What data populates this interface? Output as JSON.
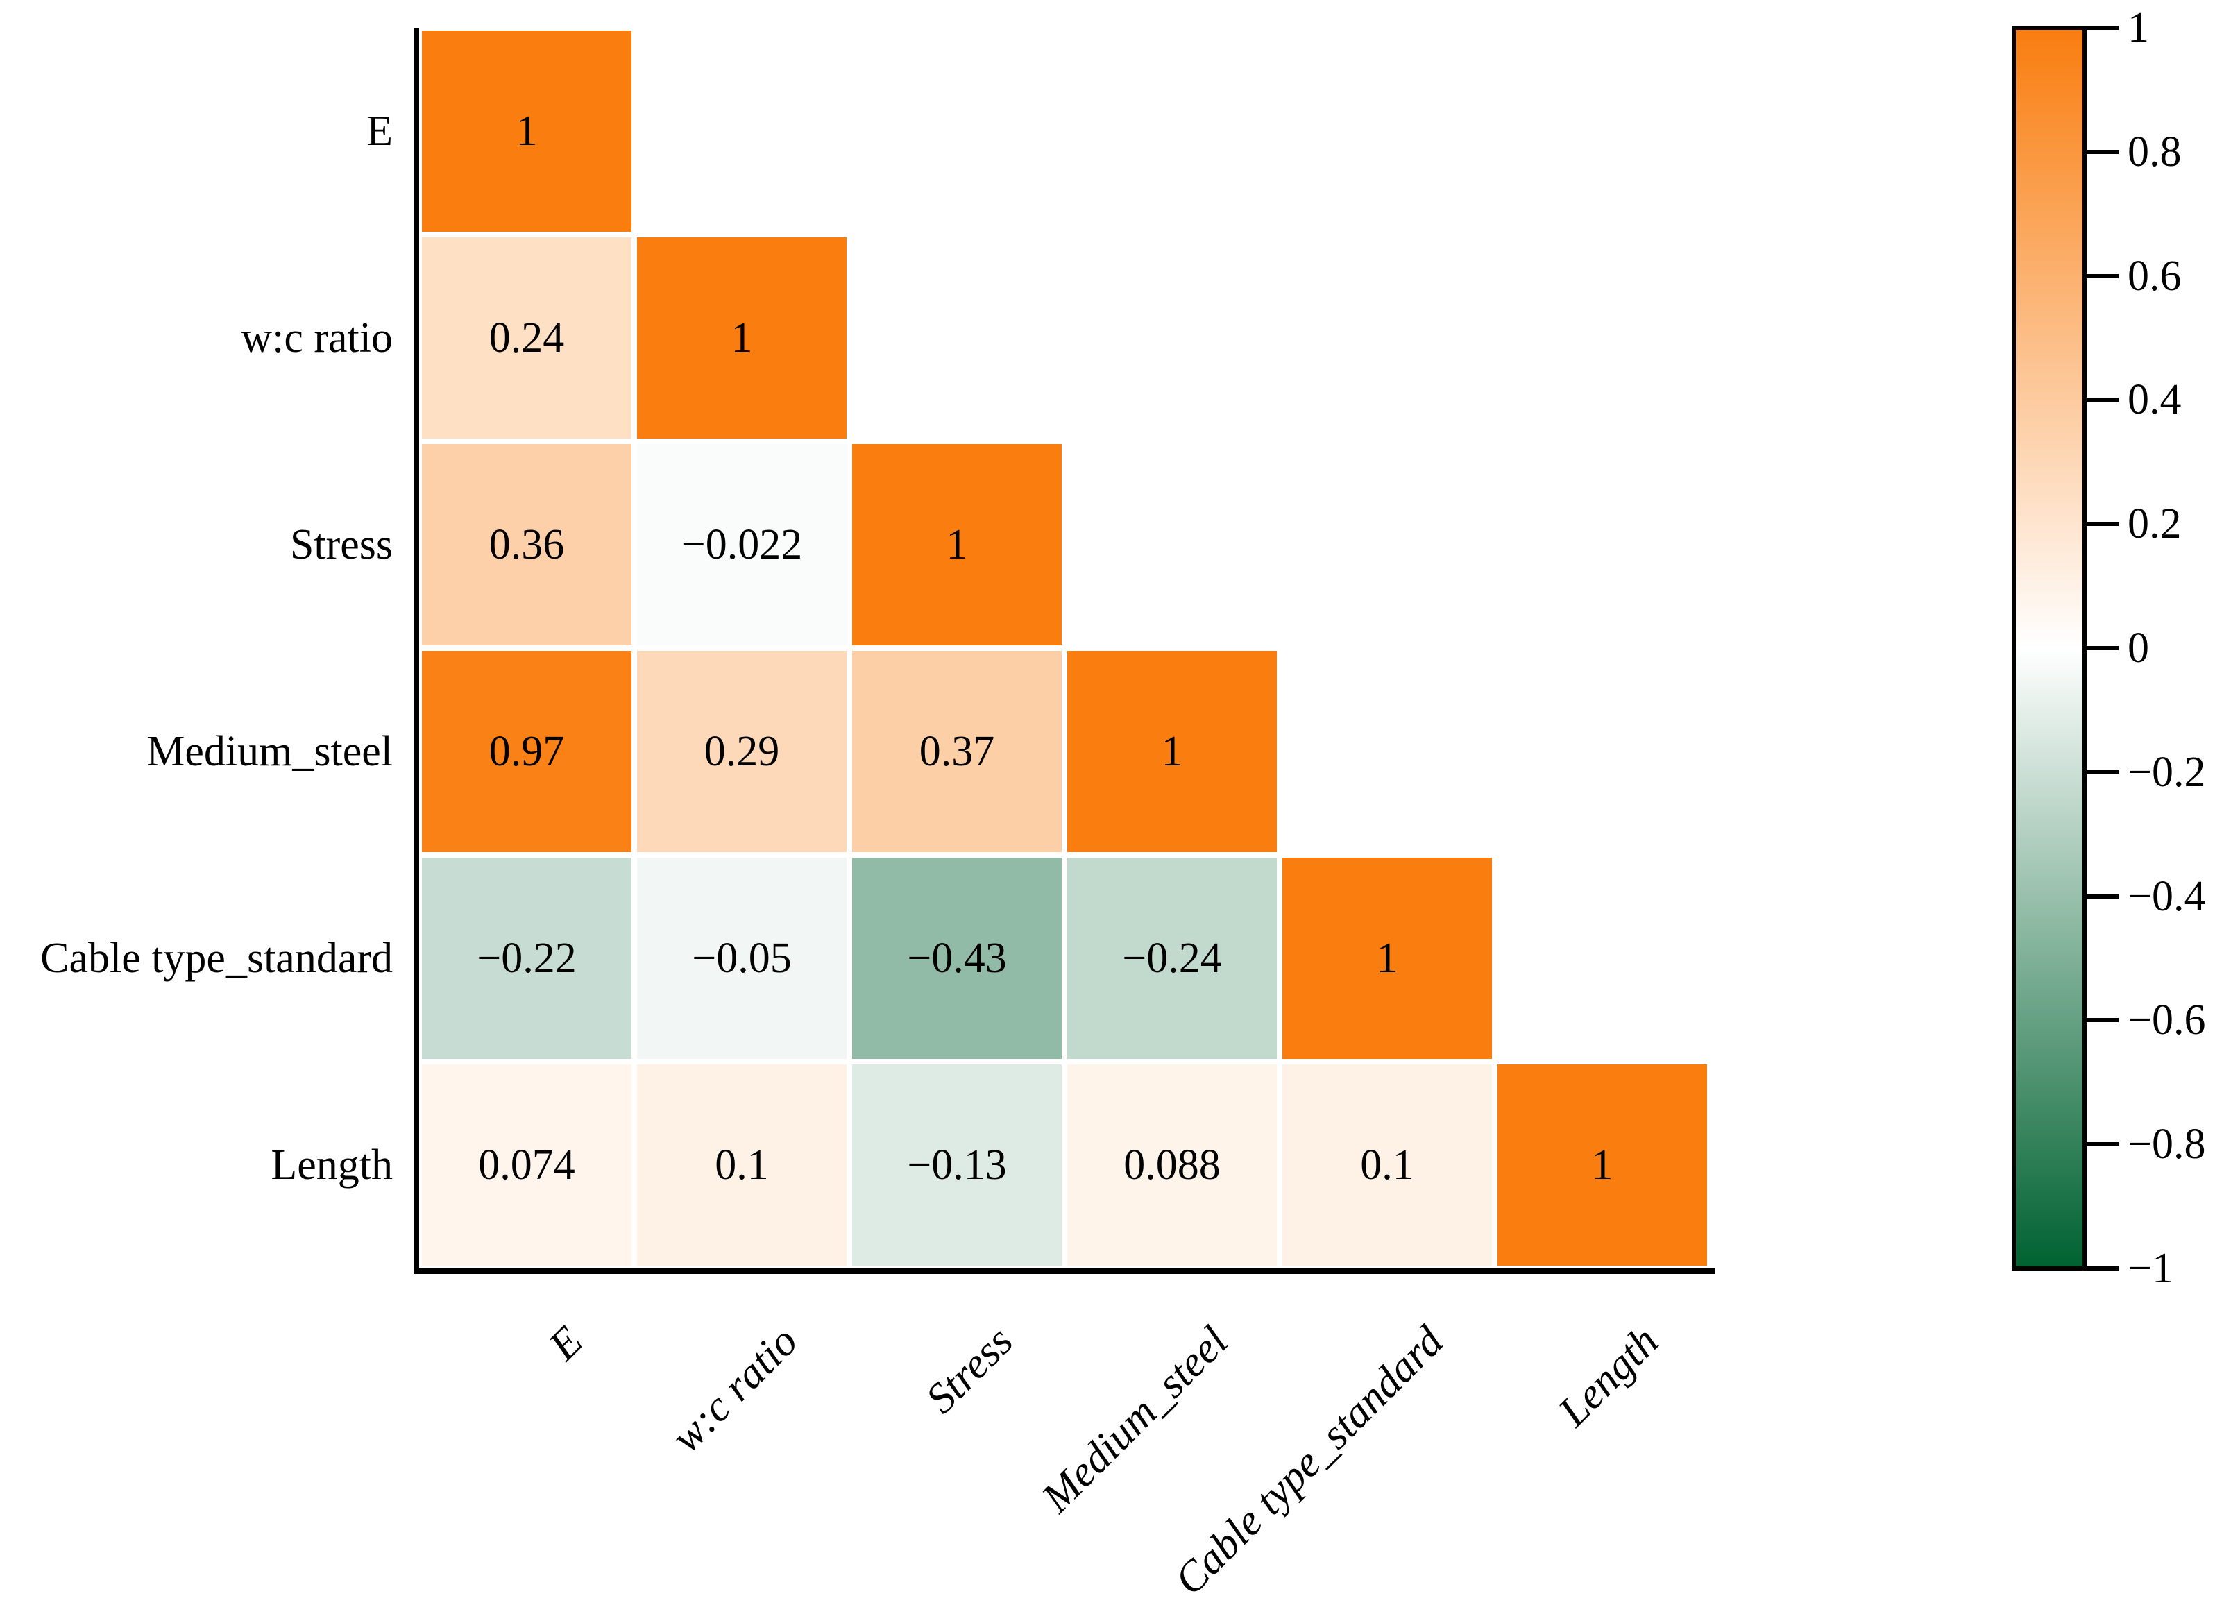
{
  "chart_data": {
    "type": "heatmap",
    "subtype": "correlation-matrix-lower-triangle",
    "title": "",
    "variables": [
      "E",
      "w:c ratio",
      "Stress",
      "Medium_steel",
      "Cable type_standard",
      "Length"
    ],
    "values": [
      [
        1
      ],
      [
        0.24,
        1
      ],
      [
        0.36,
        -0.022,
        1
      ],
      [
        0.97,
        0.29,
        0.37,
        1
      ],
      [
        -0.22,
        -0.05,
        -0.43,
        -0.24,
        1
      ],
      [
        0.074,
        0.1,
        -0.13,
        0.088,
        0.1,
        1
      ]
    ],
    "cell_labels": [
      [
        "1"
      ],
      [
        "0.24",
        "1"
      ],
      [
        "0.36",
        "−0.022",
        "1"
      ],
      [
        "0.97",
        "0.29",
        "0.37",
        "1"
      ],
      [
        "−0.22",
        "−0.05",
        "−0.43",
        "−0.24",
        "1"
      ],
      [
        "0.074",
        "0.1",
        "−0.13",
        "0.088",
        "0.1",
        "1"
      ]
    ],
    "colors": {
      "positive_end": "#F97D0F",
      "midpoint": "#FFFFFF",
      "negative_end": "#006231"
    },
    "colorbar": {
      "position": "right",
      "max": 1,
      "min": -1,
      "tick_labels": [
        "1",
        "0.8",
        "0.6",
        "0.4",
        "0.2",
        "0",
        "−0.2",
        "−0.4",
        "−0.6",
        "−0.8",
        "−1"
      ]
    },
    "grid": false,
    "legend": false
  }
}
